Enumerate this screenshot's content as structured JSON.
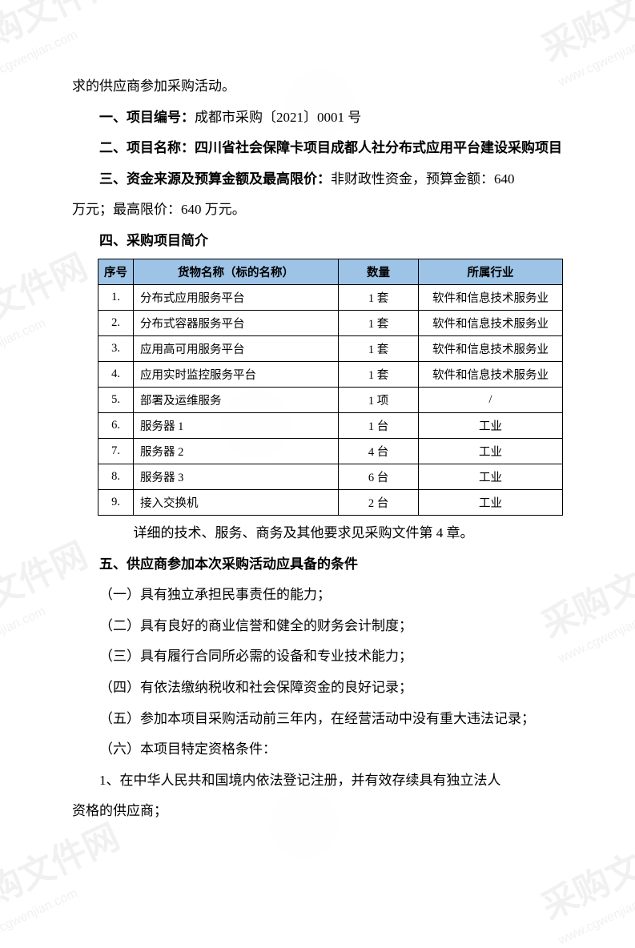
{
  "watermarks": {
    "main_text": "采购文件网",
    "url_text": "www.cgwenjian.com"
  },
  "top_line": "求的供应商参加采购活动。",
  "section1": {
    "label": "一、项目编号：",
    "value": "成都市采购〔2021〕0001 号"
  },
  "section2": {
    "label": "二、项目名称：",
    "value": "四川省社会保障卡项目成都人社分布式应用平台建设采购项目"
  },
  "section3": {
    "label": "三、资金来源及预算金额及最高限价：",
    "value_part1": "非财政性资金，预算金额：640",
    "value_part2": "万元；最高限价：640 万元。"
  },
  "section4": {
    "label": "四、采购项目简介"
  },
  "table": {
    "headers": {
      "seq": "序号",
      "name": "货物名称（标的名称）",
      "qty": "数量",
      "industry": "所属行业"
    },
    "rows": [
      {
        "seq": "1.",
        "name": "分布式应用服务平台",
        "qty": "1 套",
        "industry": "软件和信息技术服务业"
      },
      {
        "seq": "2.",
        "name": "分布式容器服务平台",
        "qty": "1 套",
        "industry": "软件和信息技术服务业"
      },
      {
        "seq": "3.",
        "name": "应用高可用服务平台",
        "qty": "1 套",
        "industry": "软件和信息技术服务业"
      },
      {
        "seq": "4.",
        "name": "应用实时监控服务平台",
        "qty": "1 套",
        "industry": "软件和信息技术服务业"
      },
      {
        "seq": "5.",
        "name": "部署及运维服务",
        "qty": "1 项",
        "industry": "/"
      },
      {
        "seq": "6.",
        "name": "服务器 1",
        "qty": "1 台",
        "industry": "工业"
      },
      {
        "seq": "7.",
        "name": "服务器 2",
        "qty": "4 台",
        "industry": "工业"
      },
      {
        "seq": "8.",
        "name": "服务器 3",
        "qty": "6 台",
        "industry": "工业"
      },
      {
        "seq": "9.",
        "name": "接入交换机",
        "qty": "2 台",
        "industry": "工业"
      }
    ],
    "note": "详细的技术、服务、商务及其他要求见采购文件第 4 章。"
  },
  "section5": {
    "label": "五、供应商参加本次采购活动应具备的条件",
    "items": [
      "（一）具有独立承担民事责任的能力；",
      "（二）具有良好的商业信誉和健全的财务会计制度；",
      "（三）具有履行合同所必需的设备和专业技术能力；",
      "（四）有依法缴纳税收和社会保障资金的良好记录；",
      "（五）参加本项目采购活动前三年内，在经营活动中没有重大违法记录；",
      "（六）本项目特定资格条件："
    ],
    "sub1_part1": "1、在中华人民共和国境内依法登记注册，并有效存续具有独立法人",
    "sub1_part2": "资格的供应商；"
  }
}
